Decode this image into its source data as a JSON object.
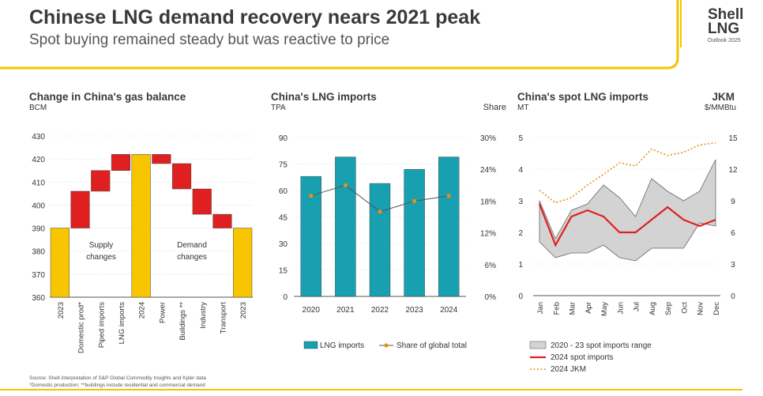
{
  "header": {
    "title": "Chinese LNG demand recovery nears 2021 peak",
    "subtitle": "Spot buying remained steady but was reactive to price",
    "logo_line1": "Shell",
    "logo_line2": "LNG",
    "logo_line3": "Outlook 2025"
  },
  "colors": {
    "yellow": "#f7c600",
    "red": "#e02020",
    "teal": "#18a0b0",
    "orange": "#e8901a",
    "gray_band": "#d3d3d3",
    "divider_yellow": "#f5c400"
  },
  "footer": {
    "source": "Source: Shell interpretation of S&P Global Commodity Insights and Kpler data",
    "note": "*Domestic production; **buildings include residential and commercial demand"
  },
  "chart_data": [
    {
      "type": "waterfall",
      "title": "Change in China's gas balance",
      "ylabel": "BCM",
      "ylim": [
        360,
        430
      ],
      "yticks": [
        360,
        370,
        380,
        390,
        400,
        410,
        420,
        430
      ],
      "categories": [
        "2023",
        "Domestic prod*",
        "Piped imports",
        "LNG imports",
        "2024",
        "Power",
        "Buildings **",
        "Industry",
        "Transport",
        "2023"
      ],
      "bars": [
        {
          "kind": "total",
          "from": 360,
          "to": 390
        },
        {
          "kind": "delta",
          "from": 390,
          "to": 406
        },
        {
          "kind": "delta",
          "from": 406,
          "to": 415
        },
        {
          "kind": "delta",
          "from": 415,
          "to": 422
        },
        {
          "kind": "total",
          "from": 360,
          "to": 422
        },
        {
          "kind": "delta",
          "from": 422,
          "to": 418
        },
        {
          "kind": "delta",
          "from": 418,
          "to": 407
        },
        {
          "kind": "delta",
          "from": 407,
          "to": 396
        },
        {
          "kind": "delta",
          "from": 396,
          "to": 390
        },
        {
          "kind": "total",
          "from": 360,
          "to": 390
        }
      ],
      "annotations": [
        "Supply",
        "changes",
        "Demand",
        "changes"
      ]
    },
    {
      "type": "bar+line",
      "title": "China's LNG imports",
      "ylabel": "TPA",
      "y2label": "Share",
      "categories": [
        "2020",
        "2021",
        "2022",
        "2023",
        "2024"
      ],
      "ylim": [
        0,
        90
      ],
      "yticks": [
        0,
        15,
        30,
        45,
        60,
        75,
        90
      ],
      "y2lim": [
        0,
        30
      ],
      "y2ticks": [
        "0%",
        "6%",
        "12%",
        "18%",
        "24%",
        "30%"
      ],
      "series": [
        {
          "name": "LNG imports",
          "type": "bar",
          "values": [
            68,
            79,
            64,
            72,
            79
          ]
        },
        {
          "name": "Share of global total",
          "type": "line",
          "values": [
            19.0,
            21.0,
            16.0,
            18.0,
            19.0
          ]
        }
      ]
    },
    {
      "type": "area+line",
      "title": "China's spot LNG imports",
      "ylabel": "MT",
      "y2title": "JKM",
      "y2label": "$/MMBtu",
      "categories": [
        "Jan",
        "Feb",
        "Mar",
        "Apr",
        "May",
        "Jun",
        "Jul",
        "Aug",
        "Sep",
        "Oct",
        "Nov",
        "Dec"
      ],
      "ylim": [
        0,
        5
      ],
      "yticks": [
        0,
        1,
        2,
        3,
        4,
        5
      ],
      "y2lim": [
        0,
        15
      ],
      "y2ticks": [
        0,
        3,
        6,
        9,
        12,
        15
      ],
      "series": [
        {
          "name": "2020 - 23 spot imports range",
          "type": "band",
          "upper": [
            3.0,
            1.8,
            2.7,
            2.9,
            3.5,
            3.1,
            2.5,
            3.7,
            3.3,
            3.0,
            3.3,
            4.3
          ],
          "lower": [
            1.7,
            1.2,
            1.35,
            1.35,
            1.6,
            1.2,
            1.1,
            1.5,
            1.5,
            1.5,
            2.3,
            2.2
          ]
        },
        {
          "name": "2024 spot imports",
          "type": "line",
          "axis": "left",
          "values": [
            2.9,
            1.6,
            2.5,
            2.7,
            2.5,
            2.0,
            2.0,
            2.4,
            2.8,
            2.4,
            2.2,
            2.4
          ]
        },
        {
          "name": "2024 JKM",
          "type": "line",
          "axis": "right",
          "values": [
            10.0,
            8.8,
            9.3,
            10.5,
            11.5,
            12.6,
            12.3,
            13.9,
            13.3,
            13.6,
            14.3,
            14.5
          ]
        }
      ]
    }
  ]
}
